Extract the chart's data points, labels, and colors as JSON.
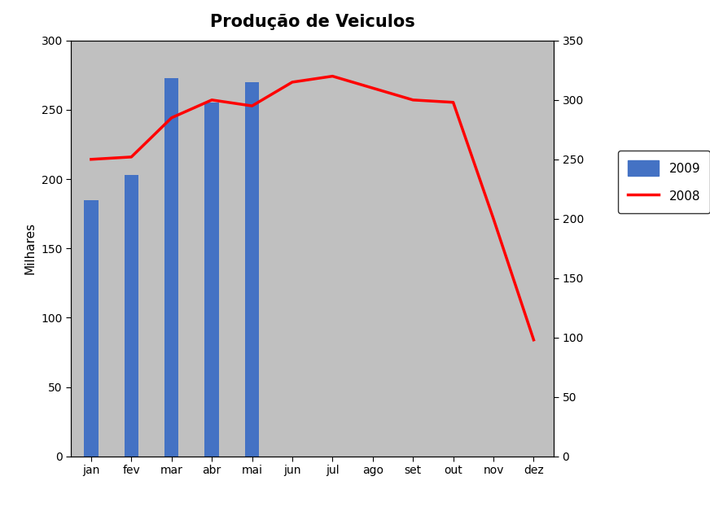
{
  "title": "Produção de Veiculos",
  "ylabel_left": "Milhares",
  "months": [
    "jan",
    "fev",
    "mar",
    "abr",
    "mai",
    "jun",
    "jul",
    "ago",
    "set",
    "out",
    "nov",
    "dez"
  ],
  "bars_2009": [
    185,
    203,
    273,
    255,
    270,
    0,
    0,
    0,
    0,
    0,
    0,
    0
  ],
  "line_2008": [
    250,
    252,
    285,
    300,
    295,
    315,
    320,
    310,
    300,
    298,
    200,
    98
  ],
  "bar_color": "#4472C4",
  "line_color": "#FF0000",
  "ylim_left": [
    0,
    300
  ],
  "ylim_right": [
    0,
    350
  ],
  "yticks_left": [
    0,
    50,
    100,
    150,
    200,
    250,
    300
  ],
  "yticks_right": [
    0,
    50,
    100,
    150,
    200,
    250,
    300,
    350
  ],
  "plot_bg_color": "#C0C0C0",
  "fig_bg_color": "#FFFFFF",
  "title_fontsize": 15,
  "axis_label_fontsize": 11,
  "tick_fontsize": 10,
  "legend_labels": [
    "2009",
    "2008"
  ],
  "line_width": 2.5,
  "bar_width": 0.35
}
